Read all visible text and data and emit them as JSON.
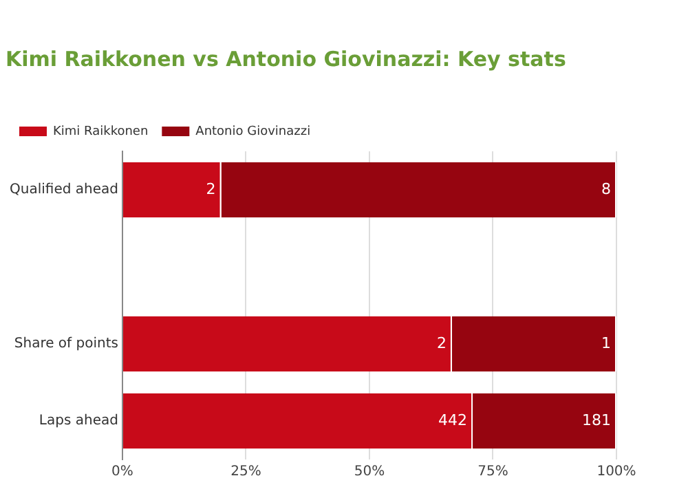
{
  "chart_data": {
    "type": "bar",
    "orientation": "horizontal",
    "stacked": true,
    "title": "Kimi Raikkonen vs Antonio Giovinazzi: Key stats",
    "categories": [
      "Qualified ahead",
      null,
      "Share of points",
      "Laps ahead"
    ],
    "series": [
      {
        "name": "Kimi Raikkonen",
        "color": "#c80a19",
        "values": [
          20,
          null,
          66.7,
          70.9
        ]
      },
      {
        "name": "Antonio Giovinazzi",
        "color": "#960510",
        "values": [
          80,
          null,
          33.3,
          29.1
        ]
      }
    ],
    "annotations": [
      {
        "text": "2",
        "x": 20,
        "y": "Qualified ahead"
      },
      {
        "text": "8",
        "x": 100,
        "y": "Qualified ahead"
      },
      {
        "text": "2",
        "x": 66.7,
        "y": "Share of points"
      },
      {
        "text": "1",
        "x": 100,
        "y": "Share of points"
      },
      {
        "text": "442",
        "x": 70.9,
        "y": "Laps ahead"
      },
      {
        "text": "181",
        "x": 100,
        "y": "Laps ahead"
      }
    ],
    "xlim": [
      0,
      100
    ],
    "xticks": [
      {
        "value": 0,
        "label": "0%"
      },
      {
        "value": 25,
        "label": "25%"
      },
      {
        "value": 50,
        "label": "50%"
      },
      {
        "value": 75,
        "label": "75%"
      },
      {
        "value": 100,
        "label": "100%"
      }
    ],
    "grid": "x",
    "legend": "top left"
  }
}
